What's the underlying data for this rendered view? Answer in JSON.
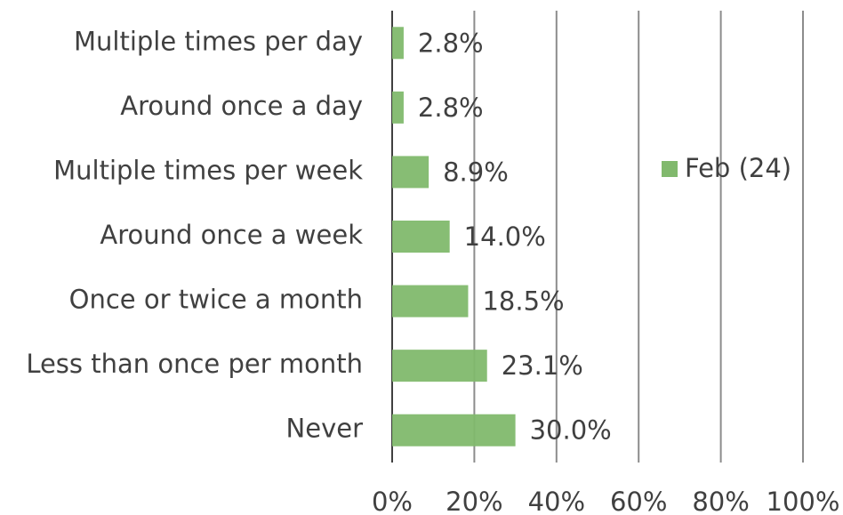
{
  "chart_data": {
    "type": "bar",
    "orientation": "horizontal",
    "categories": [
      "Multiple times per day",
      "Around once a day",
      "Multiple times per week",
      "Around once a week",
      "Once or twice a month",
      "Less than once per month",
      "Never"
    ],
    "series": [
      {
        "name": "Feb (24)",
        "color": "#81b96d",
        "values": [
          2.8,
          2.8,
          8.9,
          14.0,
          18.5,
          23.1,
          30.0
        ],
        "value_labels": [
          "2.8%",
          "2.8%",
          "8.9%",
          "14.0%",
          "18.5%",
          "23.1%",
          "30.0%"
        ]
      }
    ],
    "xlim": [
      0,
      100
    ],
    "xticks": [
      {
        "value": 0,
        "label": "0%"
      },
      {
        "value": 20,
        "label": "20%"
      },
      {
        "value": 40,
        "label": "40%"
      },
      {
        "value": 60,
        "label": "60%"
      },
      {
        "value": 80,
        "label": "80%"
      },
      {
        "value": 100,
        "label": "100%"
      }
    ],
    "grid": true,
    "legend": "right"
  }
}
